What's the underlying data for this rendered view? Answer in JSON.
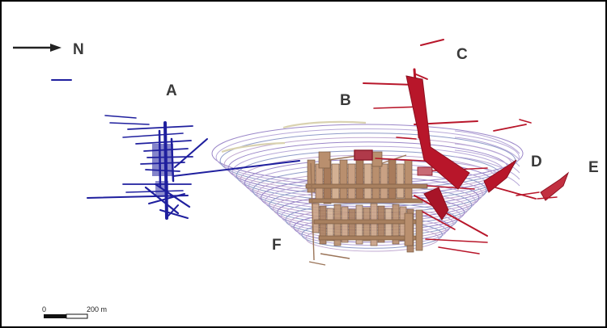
{
  "compass": {
    "label": "N",
    "icon": "arrow-right-icon"
  },
  "labels": {
    "a": "A",
    "b": "B",
    "c": "C",
    "d": "D",
    "e": "E",
    "f": "F"
  },
  "scale_bar": {
    "start": "0",
    "end": "200 m"
  },
  "colors": {
    "zone_a": "#1f1f9e",
    "pit_contours": "#9a86c8",
    "stopes_f": "#b98f6e",
    "zones_c_d_e": "#b8162a",
    "frame": "#000000"
  }
}
